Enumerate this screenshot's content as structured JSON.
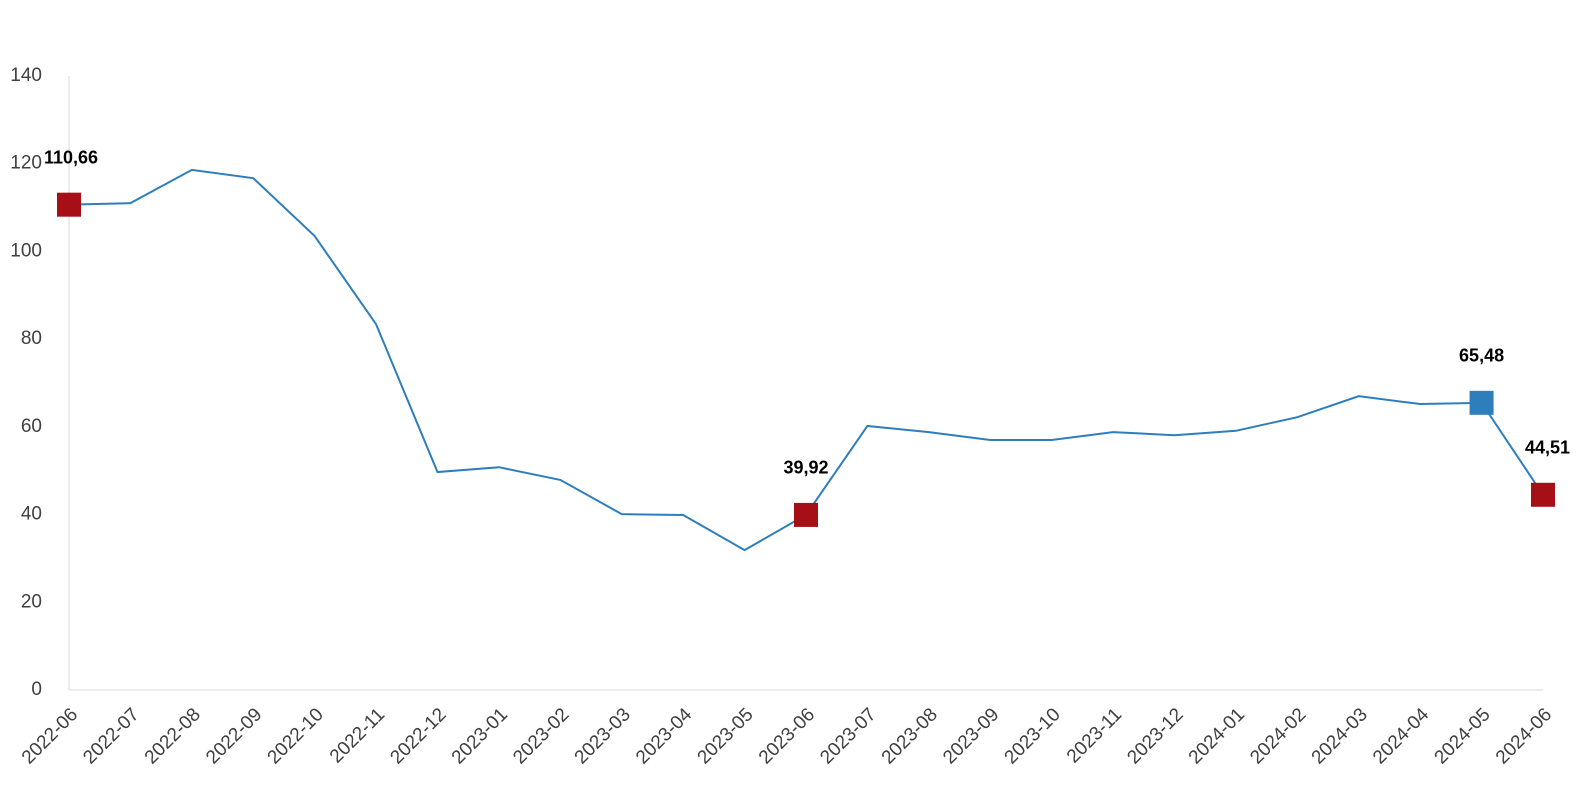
{
  "chart_data": {
    "type": "line",
    "categories": [
      "2022-06",
      "2022-07",
      "2022-08",
      "2022-09",
      "2022-10",
      "2022-11",
      "2022-12",
      "2023-01",
      "2023-02",
      "2023-03",
      "2023-04",
      "2023-05",
      "2023-06",
      "2023-07",
      "2023-08",
      "2023-09",
      "2023-10",
      "2023-11",
      "2023-12",
      "2024-01",
      "2024-02",
      "2024-03",
      "2024-04",
      "2024-05",
      "2024-06"
    ],
    "values": [
      110.66,
      111.0,
      118.6,
      116.7,
      103.5,
      83.4,
      49.7,
      50.8,
      47.9,
      40.1,
      39.9,
      31.9,
      39.92,
      60.2,
      58.8,
      57.0,
      57.0,
      58.8,
      58.1,
      59.1,
      62.2,
      67.0,
      65.2,
      65.48,
      44.51
    ],
    "value_labels": [
      "110,66",
      null,
      null,
      null,
      null,
      null,
      null,
      null,
      null,
      null,
      null,
      null,
      "39,92",
      null,
      null,
      null,
      null,
      null,
      null,
      null,
      null,
      null,
      null,
      "65,48",
      "44,51"
    ],
    "marker_colors": [
      "#a50f15",
      null,
      null,
      null,
      null,
      null,
      null,
      null,
      null,
      null,
      null,
      null,
      "#a50f15",
      null,
      null,
      null,
      null,
      null,
      null,
      null,
      null,
      null,
      null,
      "#2e7ebc",
      "#a50f15"
    ],
    "color": "#2e7ebc",
    "ylim": [
      0,
      140
    ],
    "yticks": [
      0,
      20,
      40,
      60,
      80,
      100,
      120,
      140
    ],
    "grid": false
  }
}
